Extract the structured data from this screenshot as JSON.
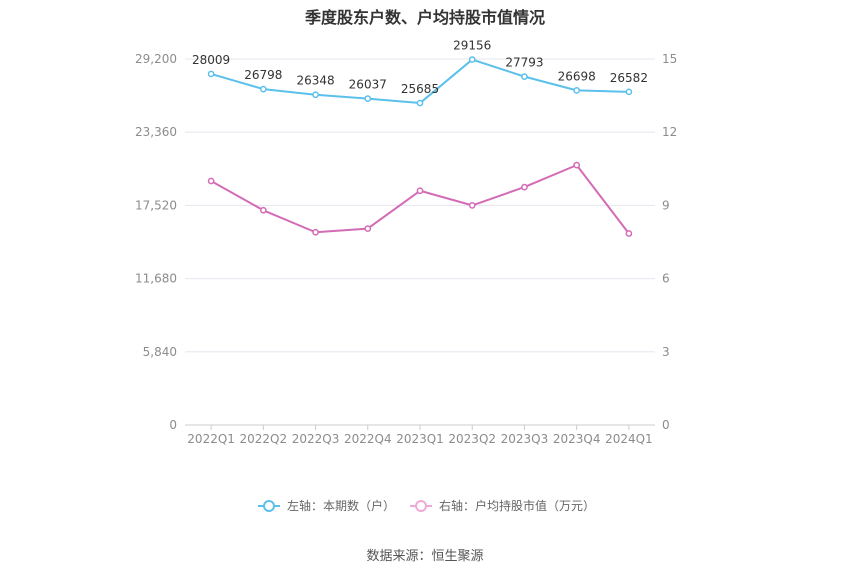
{
  "chart_data": {
    "type": "line",
    "title": "季度股东户数、户均持股市值情况",
    "categories": [
      "2022Q1",
      "2022Q2",
      "2022Q3",
      "2022Q4",
      "2023Q1",
      "2023Q2",
      "2023Q3",
      "2023Q4",
      "2024Q1"
    ],
    "series": [
      {
        "name": "左轴：本期数（户）",
        "axis": "left",
        "color": "#5bc0eb",
        "values": [
          28009,
          26798,
          26348,
          26037,
          25685,
          29156,
          27793,
          26698,
          26582
        ],
        "labels_shown": true
      },
      {
        "name": "右轴：户均持股市值（万元）",
        "axis": "right",
        "color": "#d46bb5",
        "legend_color": "#f0a8d8",
        "values": [
          10.0,
          8.8,
          7.9,
          8.05,
          9.6,
          9.0,
          9.75,
          10.65,
          7.85
        ],
        "labels_shown": false
      }
    ],
    "y_left": {
      "ticks": [
        "0",
        "5,840",
        "11,680",
        "17,520",
        "23,360",
        "29,200"
      ],
      "ylim": [
        0,
        29200
      ]
    },
    "y_right": {
      "ticks": [
        "0",
        "3",
        "6",
        "9",
        "12",
        "15"
      ],
      "ylim": [
        0,
        15
      ]
    },
    "grid": true,
    "legend_position": "bottom"
  },
  "source": "数据来源：恒生聚源"
}
